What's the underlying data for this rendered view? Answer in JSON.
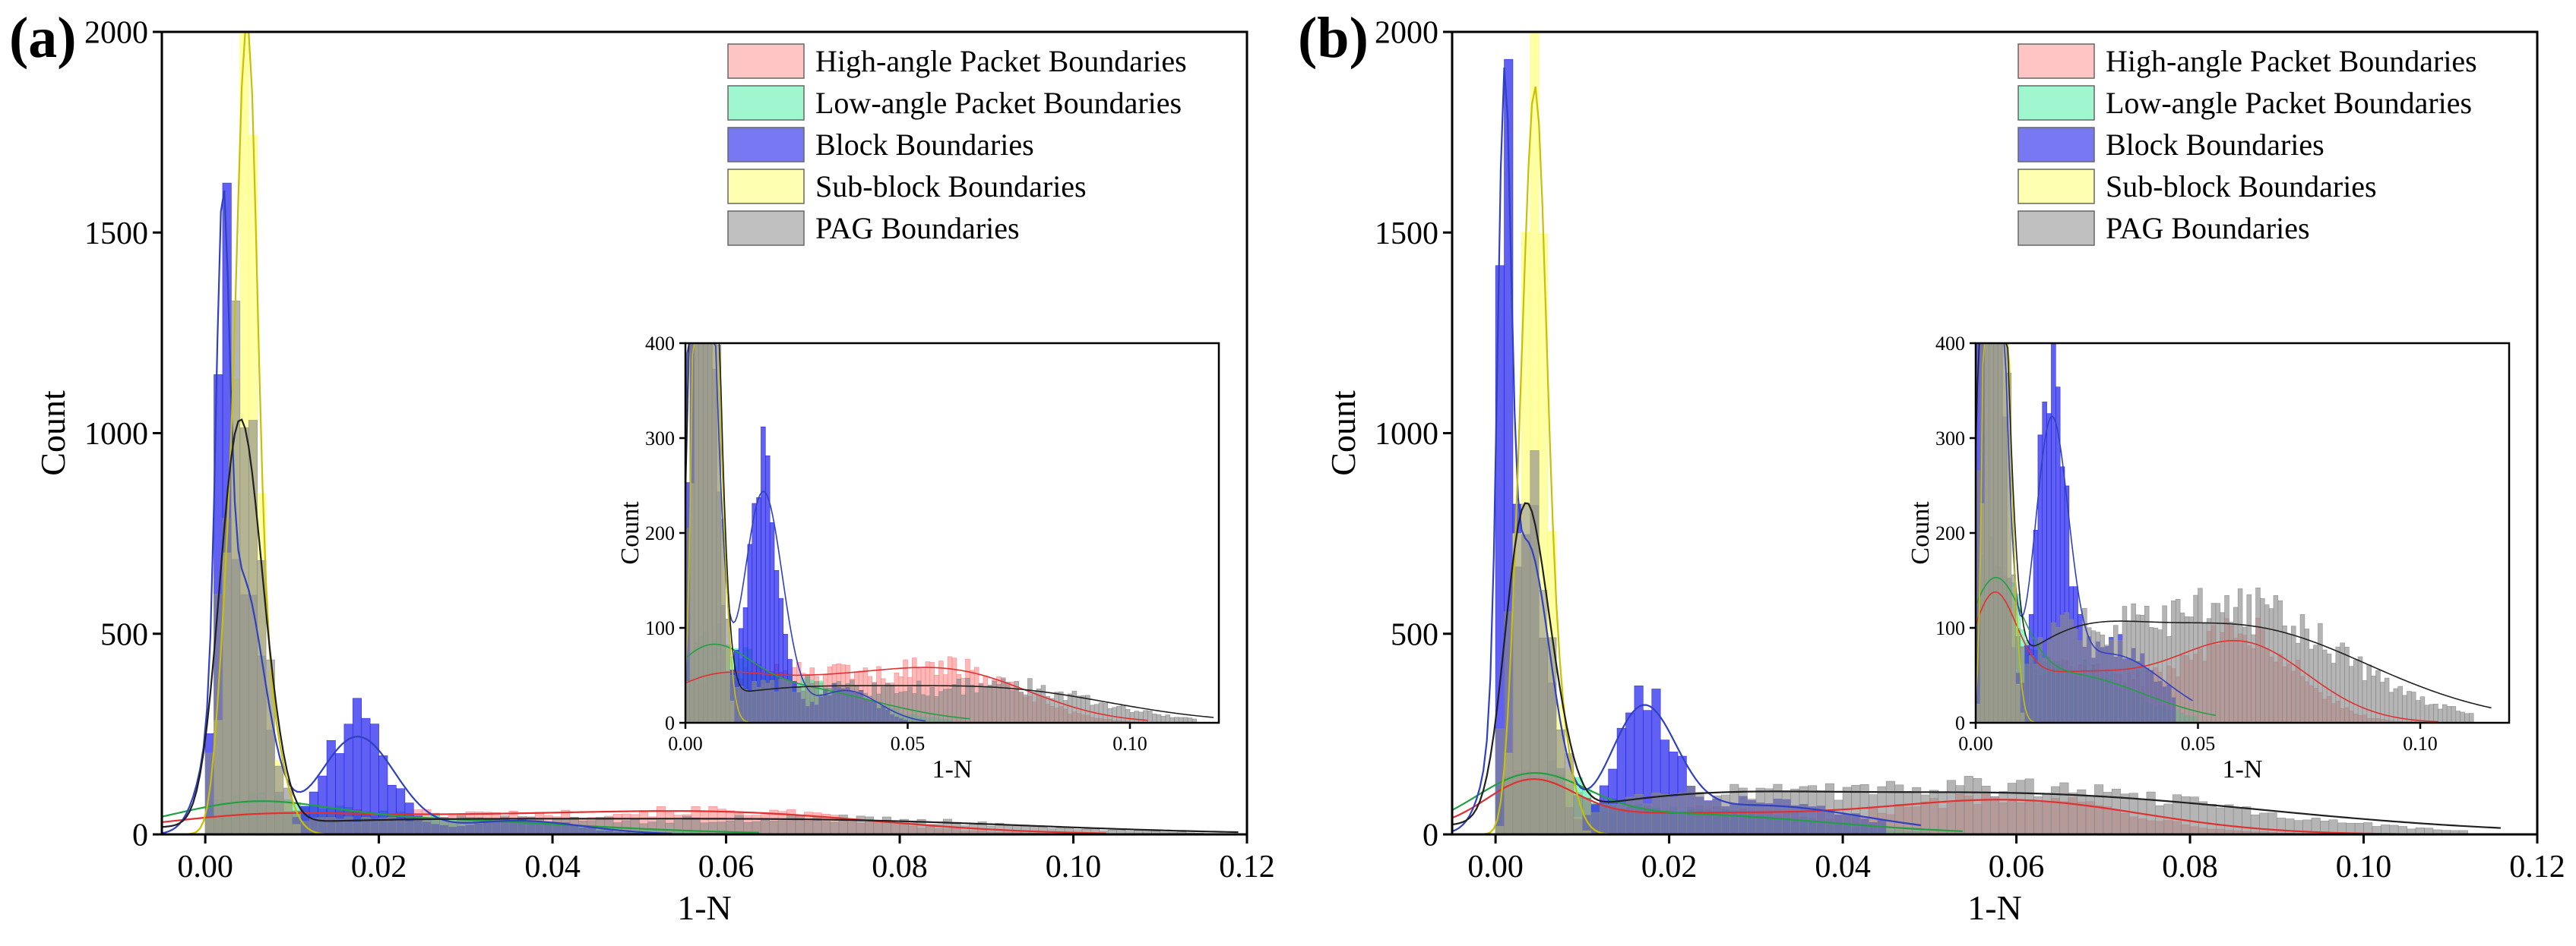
{
  "colors": {
    "high_angle": "#ff8080",
    "low_angle": "#33ee99",
    "block": "#2222ee",
    "sub_block": "#ffff66",
    "pag": "#888888",
    "fit_high": "#e03030",
    "fit_low": "#20a040",
    "fit_block": "#3040c0",
    "fit_sub": "#c8c000",
    "fit_pag": "#202020"
  },
  "chart_data": [
    {
      "panel_label": "(a)",
      "type": "histogram",
      "xlabel": "1-N",
      "ylabel": "Count",
      "xlim": [
        -0.005,
        0.12
      ],
      "ylim": [
        0,
        2000
      ],
      "xticks": [
        "0.00",
        "0.02",
        "0.04",
        "0.06",
        "0.08",
        "0.10",
        "0.12"
      ],
      "yticks": [
        "0",
        "500",
        "1000",
        "1500",
        "2000"
      ],
      "bin_width": 0.001,
      "legend": [
        "High-angle Packet Boundaries",
        "Low-angle Packet Boundaries",
        "Block Boundaries",
        "Sub-block Boundaries",
        "PAG Boundaries"
      ],
      "series": [
        {
          "name": "High-angle Packet Boundaries",
          "key": "high_angle",
          "peaks": [
            [
              0.005,
              25,
              0.008
            ],
            [
              0.025,
              50,
              0.018
            ],
            [
              0.062,
              52,
              0.014
            ]
          ],
          "noise": 0.22,
          "range": [
            0.0,
            0.1
          ]
        },
        {
          "name": "Low-angle Packet Boundaries",
          "key": "low_angle",
          "peaks": [
            [
              0.005,
              65,
              0.007
            ],
            [
              0.022,
              45,
              0.016
            ]
          ],
          "noise": 0.2,
          "range": [
            0.0,
            0.06
          ]
        },
        {
          "name": "Block Boundaries",
          "key": "block",
          "peaks": [
            [
              0.002,
              1320,
              0.0006
            ],
            [
              0.004,
              760,
              0.0022
            ],
            [
              0.0175,
              285,
              0.0035
            ],
            [
              0.036,
              40,
              0.006
            ]
          ],
          "noise": 0.2,
          "range": [
            0.0,
            0.05
          ]
        },
        {
          "name": "Sub-block Boundaries",
          "key": "sub_block",
          "peaks": [
            [
              0.0048,
              1930,
              0.0009
            ],
            [
              0.006,
              500,
              0.0018
            ],
            [
              0.0025,
              480,
              0.0009
            ]
          ],
          "noise": 0.12,
          "range": [
            0.0,
            0.011
          ]
        },
        {
          "name": "PAG Boundaries",
          "key": "pag",
          "peaks": [
            [
              0.0035,
              930,
              0.0017
            ],
            [
              0.006,
              420,
              0.0018
            ],
            [
              0.022,
              38,
              0.02
            ],
            [
              0.072,
              38,
              0.02
            ]
          ],
          "noise": 0.25,
          "range": [
            0.0,
            0.115
          ]
        }
      ],
      "inset": {
        "xlabel": "1-N",
        "ylabel": "Count",
        "xlim": [
          0.0,
          0.12
        ],
        "ylim": [
          0,
          400
        ],
        "xticks": [
          "0.00",
          "0.05",
          "0.10"
        ],
        "yticks": [
          "0",
          "100",
          "200",
          "300",
          "400"
        ]
      }
    },
    {
      "panel_label": "(b)",
      "type": "histogram",
      "xlabel": "1-N",
      "ylabel": "Count",
      "xlim": [
        -0.005,
        0.12
      ],
      "ylim": [
        0,
        2000
      ],
      "xticks": [
        "0.00",
        "0.02",
        "0.04",
        "0.06",
        "0.08",
        "0.10",
        "0.12"
      ],
      "yticks": [
        "0",
        "500",
        "1000",
        "1500",
        "2000"
      ],
      "bin_width": 0.001,
      "legend": [
        "High-angle Packet Boundaries",
        "Low-angle Packet Boundaries",
        "Block Boundaries",
        "Sub-block Boundaries",
        "PAG Boundaries"
      ],
      "series": [
        {
          "name": "High-angle Packet Boundaries",
          "key": "high_angle",
          "peaks": [
            [
              0.004,
              120,
              0.004
            ],
            [
              0.02,
              60,
              0.015
            ],
            [
              0.06,
              95,
              0.012
            ]
          ],
          "noise": 0.2,
          "range": [
            0.0,
            0.1
          ]
        },
        {
          "name": "Low-angle Packet Boundaries",
          "key": "low_angle",
          "peaks": [
            [
              0.004,
              140,
              0.005
            ],
            [
              0.02,
              60,
              0.014
            ]
          ],
          "noise": 0.2,
          "range": [
            0.0,
            0.05
          ]
        },
        {
          "name": "Block Boundaries",
          "key": "block",
          "peaks": [
            [
              0.001,
              1680,
              0.0006
            ],
            [
              0.0035,
              850,
              0.0022
            ],
            [
              0.017,
              330,
              0.003
            ],
            [
              0.03,
              85,
              0.01
            ]
          ],
          "noise": 0.18,
          "range": [
            0.0,
            0.045
          ]
        },
        {
          "name": "Sub-block Boundaries",
          "key": "sub_block",
          "peaks": [
            [
              0.0045,
              1760,
              0.001
            ],
            [
              0.006,
              500,
              0.0016
            ],
            [
              0.0025,
              420,
              0.0008
            ]
          ],
          "noise": 0.12,
          "range": [
            0.0,
            0.011
          ]
        },
        {
          "name": "PAG Boundaries",
          "key": "pag",
          "peaks": [
            [
              0.003,
              760,
              0.0017
            ],
            [
              0.006,
              330,
              0.0018
            ],
            [
              0.058,
              120,
              0.024
            ],
            [
              0.02,
              60,
              0.012
            ]
          ],
          "noise": 0.22,
          "range": [
            0.0,
            0.112
          ]
        }
      ],
      "inset": {
        "xlabel": "1-N",
        "ylabel": "Count",
        "xlim": [
          0.0,
          0.12
        ],
        "ylim": [
          0,
          400
        ],
        "xticks": [
          "0.00",
          "0.05",
          "0.10"
        ],
        "yticks": [
          "0",
          "100",
          "200",
          "300",
          "400"
        ]
      }
    }
  ]
}
